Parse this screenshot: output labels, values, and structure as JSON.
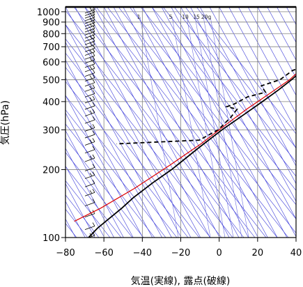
{
  "chart_data": {
    "type": "line",
    "title": "",
    "xlabel": "気温(実線), 露点(破線)",
    "ylabel": "気圧(hPa)",
    "xlim": [
      -80,
      40
    ],
    "ylim": [
      1050,
      100
    ],
    "y_scale": "log",
    "x_ticks": [
      -80,
      -60,
      -40,
      -20,
      0,
      20,
      40
    ],
    "y_ticks": [
      100,
      200,
      300,
      400,
      500,
      600,
      700,
      800,
      900,
      1000
    ],
    "grid": true,
    "mixing_ratio_labels": [
      "1",
      "5",
      "10",
      "15",
      "20g"
    ],
    "series": [
      {
        "role": "temperature",
        "style": "solid",
        "color": "#000000",
        "points": [
          [
            26,
            1000
          ],
          [
            22,
            950
          ],
          [
            17,
            900
          ],
          [
            13,
            850
          ],
          [
            9,
            800
          ],
          [
            5,
            750
          ],
          [
            3,
            700
          ],
          [
            1,
            650
          ],
          [
            0,
            600
          ],
          [
            -4,
            550
          ],
          [
            -7,
            500
          ],
          [
            -11,
            450
          ],
          [
            -16,
            400
          ],
          [
            -22,
            350
          ],
          [
            -29,
            300
          ],
          [
            -36,
            250
          ],
          [
            -44,
            200
          ],
          [
            -50,
            175
          ],
          [
            -56,
            150
          ],
          [
            -59,
            135
          ],
          [
            -63,
            120
          ],
          [
            -66,
            110
          ],
          [
            -68,
            100
          ]
        ]
      },
      {
        "role": "dewpoint",
        "style": "dashed",
        "color": "#000000",
        "points": [
          [
            25,
            1000
          ],
          [
            20,
            950
          ],
          [
            15,
            900
          ],
          [
            10,
            850
          ],
          [
            6,
            800
          ],
          [
            3,
            750
          ],
          [
            2,
            700
          ],
          [
            0,
            680
          ],
          [
            2,
            660
          ],
          [
            -1,
            650
          ],
          [
            -3,
            610
          ],
          [
            -2,
            590
          ],
          [
            -4,
            570
          ],
          [
            -9,
            550
          ],
          [
            -13,
            500
          ],
          [
            -21,
            470
          ],
          [
            -17,
            440
          ],
          [
            -25,
            420
          ],
          [
            -30,
            390
          ],
          [
            -33,
            380
          ],
          [
            -27,
            370
          ],
          [
            -28,
            340
          ],
          [
            -31,
            300
          ],
          [
            -38,
            270
          ],
          [
            -80,
            260
          ]
        ]
      },
      {
        "role": "parcel",
        "style": "solid",
        "color": "#dd0000",
        "points": [
          [
            26,
            1000
          ],
          [
            20,
            920
          ],
          [
            14,
            850
          ],
          [
            8,
            780
          ],
          [
            1,
            700
          ],
          [
            -3,
            600
          ],
          [
            -8,
            500
          ],
          [
            -15,
            430
          ],
          [
            -22,
            370
          ],
          [
            -28,
            320
          ],
          [
            -36,
            260
          ],
          [
            -46,
            210
          ],
          [
            -58,
            165
          ],
          [
            -70,
            135
          ],
          [
            -80,
            118
          ]
        ]
      }
    ],
    "wind_barbs": {
      "color": "#000000",
      "levels": [
        1000,
        975,
        950,
        925,
        900,
        875,
        850,
        825,
        800,
        775,
        750,
        725,
        700,
        675,
        650,
        625,
        600,
        575,
        550,
        525,
        500,
        475,
        450,
        425,
        400,
        375,
        350,
        325,
        300,
        280,
        260,
        240,
        220,
        200,
        185,
        170,
        155,
        140,
        125,
        110,
        100
      ]
    }
  }
}
